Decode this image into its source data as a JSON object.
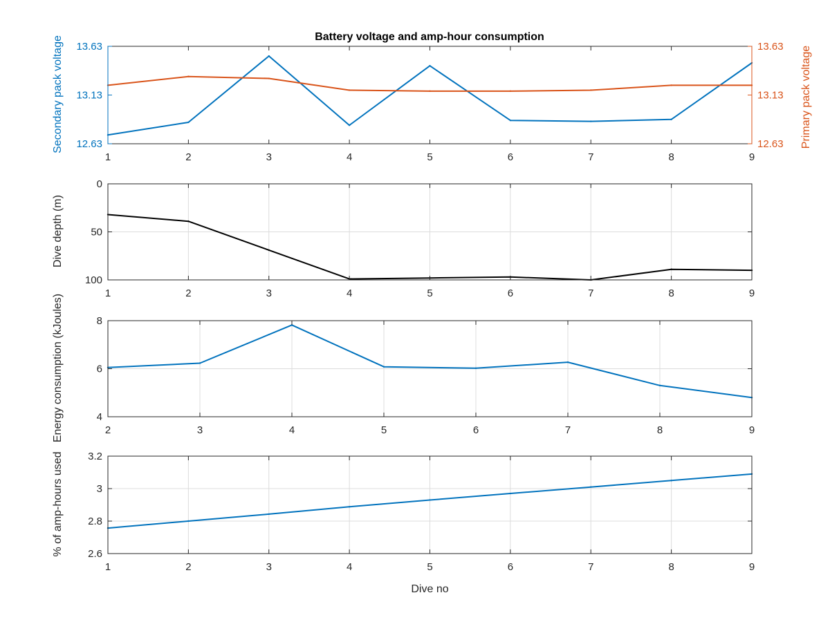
{
  "figure_title": "Battery voltage and amp-hour consumption",
  "colors": {
    "blue": "#0072BD",
    "orange": "#D95319",
    "black": "#000000",
    "grid": "#dcdcdc"
  },
  "chart_data": [
    {
      "type": "line",
      "xlabel": "",
      "ylabel_left": "Secondary pack voltage",
      "ylabel_right": "Primary pack voltage",
      "x": [
        1,
        2,
        3,
        4,
        5,
        6,
        7,
        8,
        9
      ],
      "xlim": [
        1,
        9
      ],
      "xticks": [
        "1",
        "2",
        "3",
        "4",
        "5",
        "6",
        "7",
        "8",
        "9"
      ],
      "ylim_left": [
        12.63,
        13.63
      ],
      "yticks_left": [
        "12.63",
        "13.13",
        "13.63"
      ],
      "ylim_right": [
        12.63,
        13.63
      ],
      "yticks_right": [
        "12.63",
        "13.13",
        "13.63"
      ],
      "grid": false,
      "series": [
        {
          "axis": "left",
          "color": "blue",
          "values": [
            12.72,
            12.85,
            13.53,
            12.82,
            13.43,
            12.87,
            12.86,
            12.88,
            13.46
          ]
        },
        {
          "axis": "right",
          "color": "orange",
          "values": [
            13.23,
            13.32,
            13.3,
            13.18,
            13.17,
            13.17,
            13.18,
            13.23,
            13.23
          ]
        }
      ]
    },
    {
      "type": "line",
      "xlabel": "",
      "ylabel": "Dive depth (m)",
      "x": [
        1,
        2,
        3,
        4,
        5,
        6,
        7,
        8,
        9
      ],
      "xlim": [
        1,
        9
      ],
      "xticks": [
        "1",
        "2",
        "3",
        "4",
        "5",
        "6",
        "7",
        "8",
        "9"
      ],
      "ylim": [
        0,
        100
      ],
      "yticks": [
        "0",
        "50",
        "100"
      ],
      "y_reversed": true,
      "grid": true,
      "series": [
        {
          "color": "black",
          "values": [
            32,
            39,
            69,
            99,
            98,
            97,
            100,
            89,
            90
          ]
        }
      ]
    },
    {
      "type": "line",
      "xlabel": "",
      "ylabel": "Energy consumption (kJoules)",
      "x": [
        2,
        3,
        4,
        5,
        6,
        7,
        8,
        9
      ],
      "xlim": [
        2,
        9
      ],
      "xticks": [
        "2",
        "3",
        "4",
        "5",
        "6",
        "7",
        "8",
        "9"
      ],
      "ylim": [
        4,
        8
      ],
      "yticks": [
        "4",
        "6",
        "8"
      ],
      "grid": true,
      "series": [
        {
          "color": "blue",
          "values": [
            6.05,
            6.23,
            7.82,
            6.08,
            6.02,
            6.27,
            5.3,
            4.8
          ]
        }
      ]
    },
    {
      "type": "line",
      "xlabel": "Dive no",
      "ylabel": "% of amp-hours used",
      "x": [
        1,
        2,
        3,
        4,
        5,
        6,
        7,
        8,
        9
      ],
      "xlim": [
        1,
        9
      ],
      "xticks": [
        "1",
        "2",
        "3",
        "4",
        "5",
        "6",
        "7",
        "8",
        "9"
      ],
      "ylim": [
        2.6,
        3.2
      ],
      "yticks": [
        "2.6",
        "2.8",
        "3",
        "3.2"
      ],
      "grid": true,
      "series": [
        {
          "color": "blue",
          "values": [
            2.757,
            2.8,
            2.843,
            2.888,
            2.93,
            2.97,
            3.01,
            3.05,
            3.09
          ]
        }
      ]
    }
  ]
}
